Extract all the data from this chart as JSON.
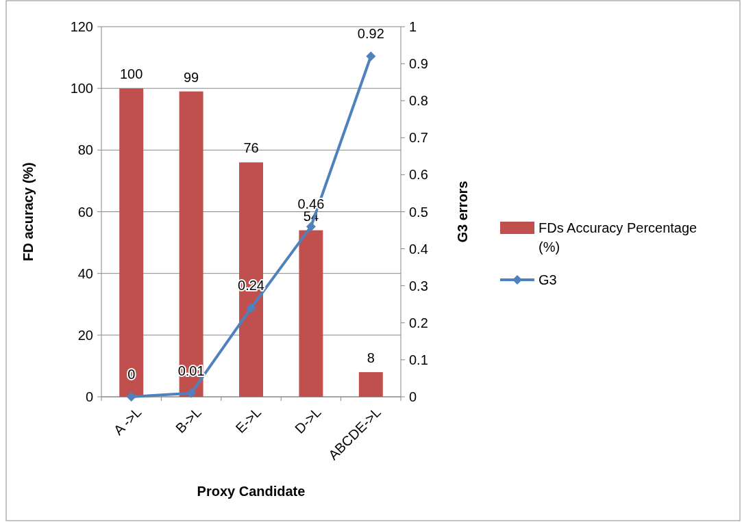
{
  "chart_data": {
    "type": "bar",
    "xlabel": "Proxy Candidate",
    "ylabel": "FD acuracy (%)",
    "y2label": "G3 errors",
    "categories": [
      "A ->L",
      "B->L",
      "E->L",
      "D->L",
      "ABCDE->L"
    ],
    "series": [
      {
        "name": "FDs Accuracy Percentage (%)",
        "color": "#c0504d",
        "values": [
          100,
          99,
          76,
          54,
          8
        ]
      },
      {
        "name": "G3",
        "type": "line",
        "axis": "y2",
        "color": "#4f81bd",
        "values": [
          0,
          0.01,
          0.24,
          0.46,
          0.92
        ]
      }
    ],
    "ylim": [
      0,
      120
    ],
    "yticks": [
      0,
      20,
      40,
      60,
      80,
      100,
      120
    ],
    "y2lim": [
      0,
      1
    ],
    "y2ticks": [
      0,
      0.1,
      0.2,
      0.3,
      0.4,
      0.5,
      0.6,
      0.7,
      0.8,
      0.9,
      1
    ],
    "grid": "y",
    "legend": "right",
    "marker": "diamond",
    "data_labels": true
  }
}
